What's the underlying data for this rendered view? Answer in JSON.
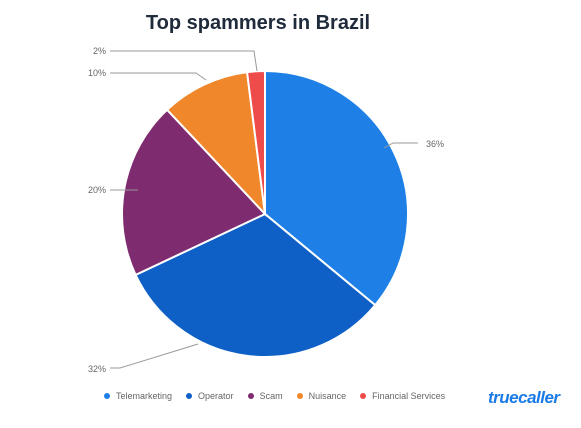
{
  "chart_data": {
    "type": "pie",
    "title": "Top spammers in Brazil",
    "categories": [
      "Telemarketing",
      "Operator",
      "Scam",
      "Nuisance",
      "Financial Services"
    ],
    "values": [
      36,
      32,
      20,
      10,
      2
    ],
    "labels": [
      "36%",
      "32%",
      "20%",
      "10%",
      "2%"
    ],
    "colors": [
      "#1e80e6",
      "#0e5fc6",
      "#7f2b6f",
      "#f0872b",
      "#ee4b4b"
    ],
    "legend_position": "bottom"
  },
  "brand": {
    "logo_text": "truecaller"
  }
}
